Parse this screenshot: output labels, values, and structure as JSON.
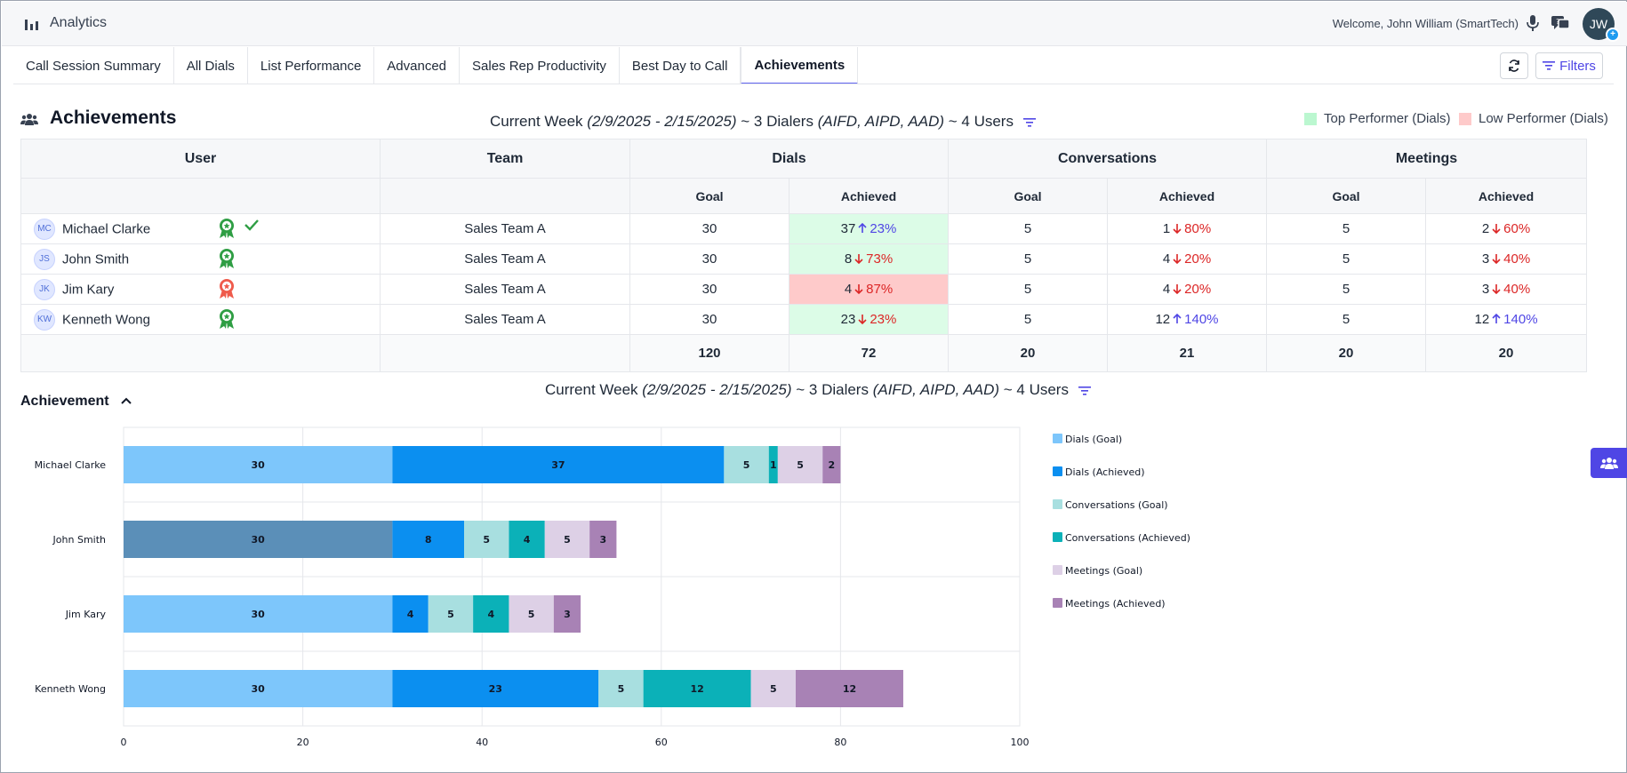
{
  "app": {
    "title": "Analytics",
    "welcome": "Welcome, John William (SmartTech)",
    "avatar_initials": "JW",
    "avatar_badge": "+"
  },
  "tabs": [
    {
      "label": "Call Session Summary",
      "active": false
    },
    {
      "label": "All Dials",
      "active": false
    },
    {
      "label": "List Performance",
      "active": false
    },
    {
      "label": "Advanced",
      "active": false
    },
    {
      "label": "Sales Rep Productivity",
      "active": false
    },
    {
      "label": "Best Day to Call",
      "active": false
    },
    {
      "label": "Achievements",
      "active": true
    }
  ],
  "toolbar": {
    "filters_label": "Filters"
  },
  "section": {
    "title": "Achievements",
    "week_prefix": "Current Week ",
    "week_range": "(2/9/2025 - 2/15/2025)",
    "week_mid": " ~ 3 Dialers ",
    "dialers": "(AIFD, AIPD, AAD)",
    "week_suffix": " ~ 4 Users"
  },
  "legend_top": {
    "top": "Top Performer (Dials)",
    "low": "Low Performer (Dials)",
    "top_color": "#bbf7d0",
    "low_color": "#fecaca"
  },
  "table": {
    "headers": {
      "user": "User",
      "team": "Team",
      "dials": "Dials",
      "conversations": "Conversations",
      "meetings": "Meetings",
      "goal": "Goal",
      "achieved": "Achieved"
    },
    "rows": [
      {
        "initials": "MC",
        "name": "Michael Clarke",
        "team": "Sales Team A",
        "badge": "green",
        "check": true,
        "dials_goal": "30",
        "dials_ach": "37",
        "dials_pct": "23%",
        "dials_dir": "up",
        "dials_bg": "green",
        "conv_goal": "5",
        "conv_ach": "1",
        "conv_pct": "80%",
        "conv_dir": "down",
        "meet_goal": "5",
        "meet_ach": "2",
        "meet_pct": "60%",
        "meet_dir": "down"
      },
      {
        "initials": "JS",
        "name": "John Smith",
        "team": "Sales Team A",
        "badge": "green",
        "check": false,
        "dials_goal": "30",
        "dials_ach": "8",
        "dials_pct": "73%",
        "dials_dir": "down",
        "dials_bg": "green",
        "conv_goal": "5",
        "conv_ach": "4",
        "conv_pct": "20%",
        "conv_dir": "down",
        "meet_goal": "5",
        "meet_ach": "3",
        "meet_pct": "40%",
        "meet_dir": "down"
      },
      {
        "initials": "JK",
        "name": "Jim Kary",
        "team": "Sales Team A",
        "badge": "red",
        "check": false,
        "dials_goal": "30",
        "dials_ach": "4",
        "dials_pct": "87%",
        "dials_dir": "down",
        "dials_bg": "red",
        "conv_goal": "5",
        "conv_ach": "4",
        "conv_pct": "20%",
        "conv_dir": "down",
        "meet_goal": "5",
        "meet_ach": "3",
        "meet_pct": "40%",
        "meet_dir": "down"
      },
      {
        "initials": "KW",
        "name": "Kenneth Wong",
        "team": "Sales Team A",
        "badge": "green",
        "check": false,
        "dials_goal": "30",
        "dials_ach": "23",
        "dials_pct": "23%",
        "dials_dir": "down",
        "dials_bg": "green",
        "conv_goal": "5",
        "conv_ach": "12",
        "conv_pct": "140%",
        "conv_dir": "up",
        "meet_goal": "5",
        "meet_ach": "12",
        "meet_pct": "140%",
        "meet_dir": "up"
      }
    ],
    "totals": [
      "120",
      "72",
      "20",
      "21",
      "20",
      "20"
    ]
  },
  "chart_section": {
    "title": "Achievement"
  },
  "chart_data": {
    "type": "bar",
    "orientation": "horizontal",
    "stacked": true,
    "categories": [
      "Michael Clarke",
      "John Smith",
      "Jim Kary",
      "Kenneth Wong"
    ],
    "series": [
      {
        "name": "Dials (Goal)",
        "values": [
          30,
          30,
          30,
          30
        ],
        "color": "#7dc6fb"
      },
      {
        "name": "Dials (Achieved)",
        "values": [
          37,
          8,
          4,
          23
        ],
        "color": "#0b8ff0"
      },
      {
        "name": "Conversations (Goal)",
        "values": [
          5,
          5,
          5,
          5
        ],
        "color": "#a8dfe0"
      },
      {
        "name": "Conversations (Achieved)",
        "values": [
          1,
          4,
          4,
          12
        ],
        "color": "#0bb1b8"
      },
      {
        "name": "Meetings (Goal)",
        "values": [
          5,
          5,
          5,
          5
        ],
        "color": "#ddd0e6"
      },
      {
        "name": "Meetings (Achieved)",
        "values": [
          2,
          3,
          3,
          12
        ],
        "color": "#a882b5"
      }
    ],
    "highlight": {
      "category": "John Smith",
      "series": "Dials (Goal)",
      "color": "#5b8fb8"
    },
    "xlim": [
      0,
      100
    ],
    "xticks": [
      "0",
      "20",
      "40",
      "60",
      "80",
      "100"
    ],
    "grid": true,
    "legend": "right",
    "title": "",
    "xlabel": "",
    "ylabel": ""
  },
  "colors": {
    "accent": "#4f46e5",
    "up": "#4f46e5",
    "down": "#dc2626"
  }
}
